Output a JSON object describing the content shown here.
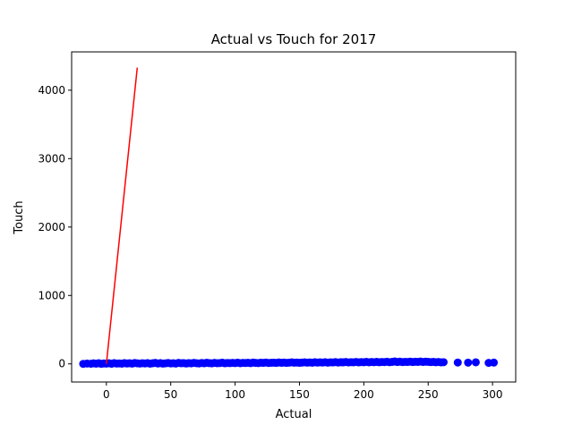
{
  "chart_data": {
    "type": "scatter",
    "title": "Actual vs Touch for 2017",
    "xlabel": "Actual",
    "ylabel": "Touch",
    "xlim": [
      -27,
      318
    ],
    "ylim": [
      -265,
      4560
    ],
    "xticks": [
      0,
      50,
      100,
      150,
      200,
      250,
      300
    ],
    "yticks": [
      0,
      1000,
      2000,
      3000,
      4000
    ],
    "xtick_labels": [
      "0",
      "50",
      "100",
      "150",
      "200",
      "250",
      "300"
    ],
    "ytick_labels": [
      "0",
      "1000",
      "2000",
      "3000",
      "4000"
    ],
    "grid": false,
    "legend": "none",
    "scatter": {
      "color": "#0000ff",
      "x_range": [
        -18,
        301
      ],
      "y_range": [
        -5,
        40
      ],
      "points": [
        [
          -18,
          0
        ],
        [
          -15,
          5
        ],
        [
          -12,
          2
        ],
        [
          -10,
          8
        ],
        [
          -8,
          3
        ],
        [
          -6,
          10
        ],
        [
          -4,
          1
        ],
        [
          -2,
          6
        ],
        [
          0,
          4
        ],
        [
          2,
          9
        ],
        [
          4,
          2
        ],
        [
          6,
          12
        ],
        [
          8,
          5
        ],
        [
          10,
          7
        ],
        [
          12,
          3
        ],
        [
          14,
          11
        ],
        [
          16,
          6
        ],
        [
          18,
          9
        ],
        [
          20,
          4
        ],
        [
          22,
          13
        ],
        [
          24,
          8
        ],
        [
          26,
          5
        ],
        [
          28,
          10
        ],
        [
          30,
          7
        ],
        [
          32,
          12
        ],
        [
          34,
          3
        ],
        [
          36,
          9
        ],
        [
          38,
          14
        ],
        [
          40,
          6
        ],
        [
          42,
          11
        ],
        [
          44,
          4
        ],
        [
          46,
          8
        ],
        [
          48,
          13
        ],
        [
          50,
          7
        ],
        [
          52,
          10
        ],
        [
          54,
          5
        ],
        [
          56,
          15
        ],
        [
          58,
          9
        ],
        [
          60,
          12
        ],
        [
          62,
          6
        ],
        [
          64,
          11
        ],
        [
          66,
          8
        ],
        [
          68,
          14
        ],
        [
          70,
          10
        ],
        [
          72,
          7
        ],
        [
          74,
          13
        ],
        [
          76,
          9
        ],
        [
          78,
          16
        ],
        [
          80,
          11
        ],
        [
          82,
          8
        ],
        [
          84,
          14
        ],
        [
          86,
          10
        ],
        [
          88,
          12
        ],
        [
          90,
          17
        ],
        [
          92,
          9
        ],
        [
          94,
          13
        ],
        [
          96,
          11
        ],
        [
          98,
          15
        ],
        [
          100,
          12
        ],
        [
          102,
          18
        ],
        [
          104,
          10
        ],
        [
          106,
          14
        ],
        [
          108,
          13
        ],
        [
          110,
          16
        ],
        [
          112,
          11
        ],
        [
          114,
          19
        ],
        [
          116,
          14
        ],
        [
          118,
          12
        ],
        [
          120,
          17
        ],
        [
          122,
          15
        ],
        [
          124,
          20
        ],
        [
          126,
          13
        ],
        [
          128,
          16
        ],
        [
          130,
          18
        ],
        [
          132,
          14
        ],
        [
          134,
          21
        ],
        [
          136,
          16
        ],
        [
          138,
          19
        ],
        [
          140,
          15
        ],
        [
          142,
          18
        ],
        [
          144,
          22
        ],
        [
          146,
          17
        ],
        [
          148,
          20
        ],
        [
          150,
          16
        ],
        [
          152,
          19
        ],
        [
          154,
          23
        ],
        [
          156,
          18
        ],
        [
          158,
          21
        ],
        [
          160,
          17
        ],
        [
          162,
          24
        ],
        [
          164,
          19
        ],
        [
          166,
          22
        ],
        [
          168,
          20
        ],
        [
          170,
          25
        ],
        [
          172,
          18
        ],
        [
          174,
          23
        ],
        [
          176,
          21
        ],
        [
          178,
          26
        ],
        [
          180,
          20
        ],
        [
          182,
          24
        ],
        [
          184,
          22
        ],
        [
          186,
          27
        ],
        [
          188,
          21
        ],
        [
          190,
          25
        ],
        [
          192,
          23
        ],
        [
          194,
          28
        ],
        [
          196,
          22
        ],
        [
          198,
          26
        ],
        [
          200,
          24
        ],
        [
          202,
          29
        ],
        [
          204,
          23
        ],
        [
          206,
          27
        ],
        [
          208,
          25
        ],
        [
          210,
          30
        ],
        [
          212,
          24
        ],
        [
          214,
          28
        ],
        [
          216,
          26
        ],
        [
          218,
          31
        ],
        [
          220,
          25
        ],
        [
          222,
          29
        ],
        [
          224,
          35
        ],
        [
          226,
          27
        ],
        [
          228,
          32
        ],
        [
          230,
          26
        ],
        [
          232,
          30
        ],
        [
          234,
          28
        ],
        [
          236,
          33
        ],
        [
          238,
          27
        ],
        [
          240,
          31
        ],
        [
          242,
          29
        ],
        [
          244,
          34
        ],
        [
          246,
          28
        ],
        [
          248,
          32
        ],
        [
          250,
          30
        ],
        [
          252,
          26
        ],
        [
          254,
          29
        ],
        [
          256,
          24
        ],
        [
          258,
          27
        ],
        [
          260,
          22
        ],
        [
          262,
          25
        ],
        [
          273,
          20
        ],
        [
          281,
          18
        ],
        [
          287,
          23
        ],
        [
          297,
          15
        ],
        [
          301,
          19
        ]
      ]
    },
    "line": {
      "color": "#ff0000",
      "x": [
        0,
        24
      ],
      "y": [
        0,
        4330
      ]
    }
  }
}
